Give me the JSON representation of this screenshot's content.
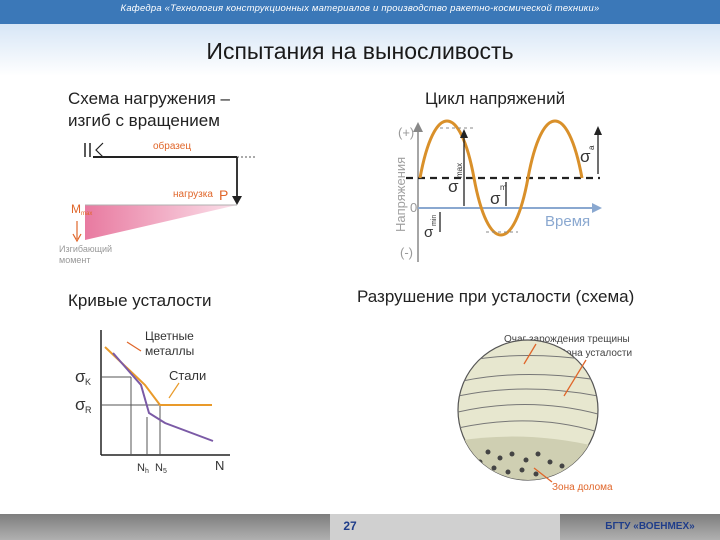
{
  "header": {
    "department": "Кафедра «Технология конструкционных материалов и производство ракетно-космической техники»",
    "title": "Испытания на выносливость"
  },
  "panels": {
    "loading": {
      "caption_line1": "Схема нагружения –",
      "caption_line2": "изгиб с вращением",
      "label_specimen": "образец",
      "label_load": "нагрузка",
      "label_P": "P",
      "label_M": "M",
      "label_M_sub": "max",
      "label_moment_line1": "Изгибающий",
      "label_moment_line2": "момент"
    },
    "cycle": {
      "caption": "Цикл напряжений",
      "label_plus": "(+)",
      "label_minus": "(-)",
      "label_zero": "0",
      "label_axis_y": "Напряжения",
      "label_time": "Время",
      "label_smax": "σ",
      "label_smax_sub": "max",
      "label_smin": "σ",
      "label_smin_sub": "min",
      "label_sm": "σ",
      "label_sm_sub": "m",
      "label_sa": "σ",
      "label_sa_sub": "a"
    },
    "fatigue": {
      "caption": "Кривые усталости",
      "label_colored_line1": "Цветные",
      "label_colored_line2": "металлы",
      "label_steels": "Стали",
      "label_sk": "σ",
      "label_sk_sub": "K",
      "label_sr": "σ",
      "label_sr_sub": "R",
      "label_N": "N",
      "label_Nh": "N",
      "label_Nh_sub": "h",
      "label_Ns": "N",
      "label_Ns_sub": "5"
    },
    "fracture": {
      "caption": "Разрушение при усталости (схема)",
      "label_origin": "Очаг зарождения трещины",
      "label_fatigue_zone": "Зона усталости",
      "label_break_zone": "Зона долома"
    }
  },
  "footer": {
    "page_number": "27",
    "institution": "БГТУ «ВОЕНМЕХ»"
  },
  "colors": {
    "top_bar": "#3b78b8",
    "wave": "#d9902a",
    "fatigue_steel": "#e99a2a",
    "fatigue_colored": "#7b5aa6",
    "moment_fill": "#f0a7c0",
    "annotation": "#e0662a"
  }
}
